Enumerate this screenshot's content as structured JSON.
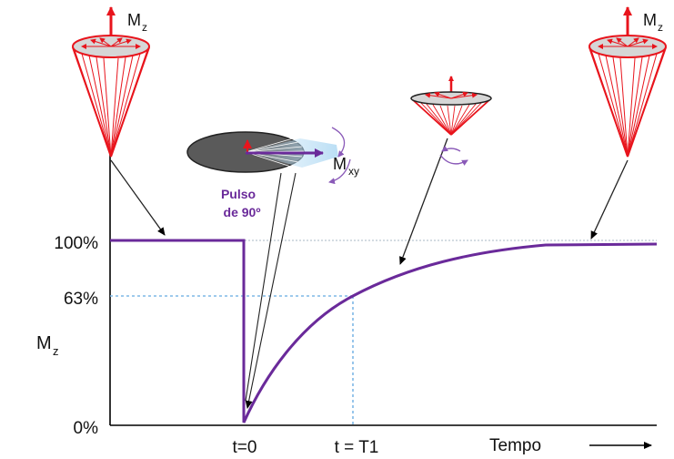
{
  "diagram": {
    "y_axis": {
      "label_main": "M",
      "label_sub": "z",
      "ticks": [
        "100%",
        "63%",
        "0%"
      ]
    },
    "x_axis": {
      "ticks": [
        "t=0",
        "t = T1"
      ],
      "label": "Tempo"
    },
    "pulse_label": [
      "Pulso",
      "de 90º"
    ],
    "cone_labels": {
      "left": {
        "main": "M",
        "sub": "z"
      },
      "right": {
        "main": "M",
        "sub": "z"
      },
      "transverse": {
        "main": "M",
        "sub": "xy"
      }
    },
    "colors": {
      "curve": "#6a2a9a",
      "vector": "#e8141c",
      "guide": "#7fb8e6",
      "axis": "#000000"
    }
  }
}
